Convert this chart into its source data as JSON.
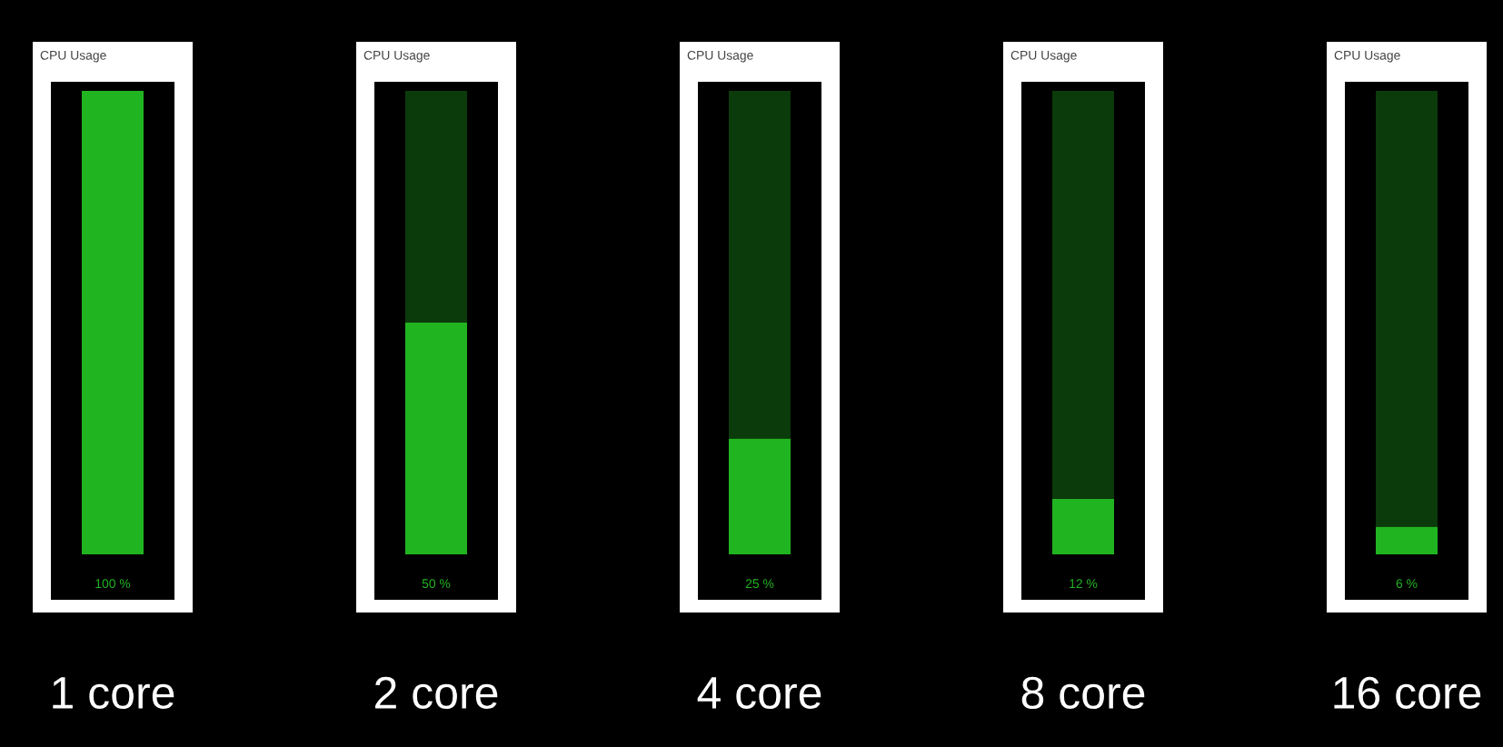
{
  "chart_data": {
    "type": "bar",
    "categories": [
      "1 core",
      "2 core",
      "4 core",
      "8 core",
      "16 core"
    ],
    "stacked": true,
    "series": [
      {
        "color": "#21b421",
        "values": [
          100,
          50,
          25,
          12,
          6
        ],
        "value_labels": [
          "100 %",
          "50 %",
          "25 %",
          "12 %",
          "6 %"
        ]
      },
      {
        "color": "#0b3a0b",
        "values": [
          0,
          50,
          75,
          88,
          94
        ]
      }
    ],
    "annotations": [
      "CPU Usage",
      "CPU Usage",
      "CPU Usage",
      "CPU Usage",
      "CPU Usage"
    ],
    "tick_labels": "x"
  }
}
